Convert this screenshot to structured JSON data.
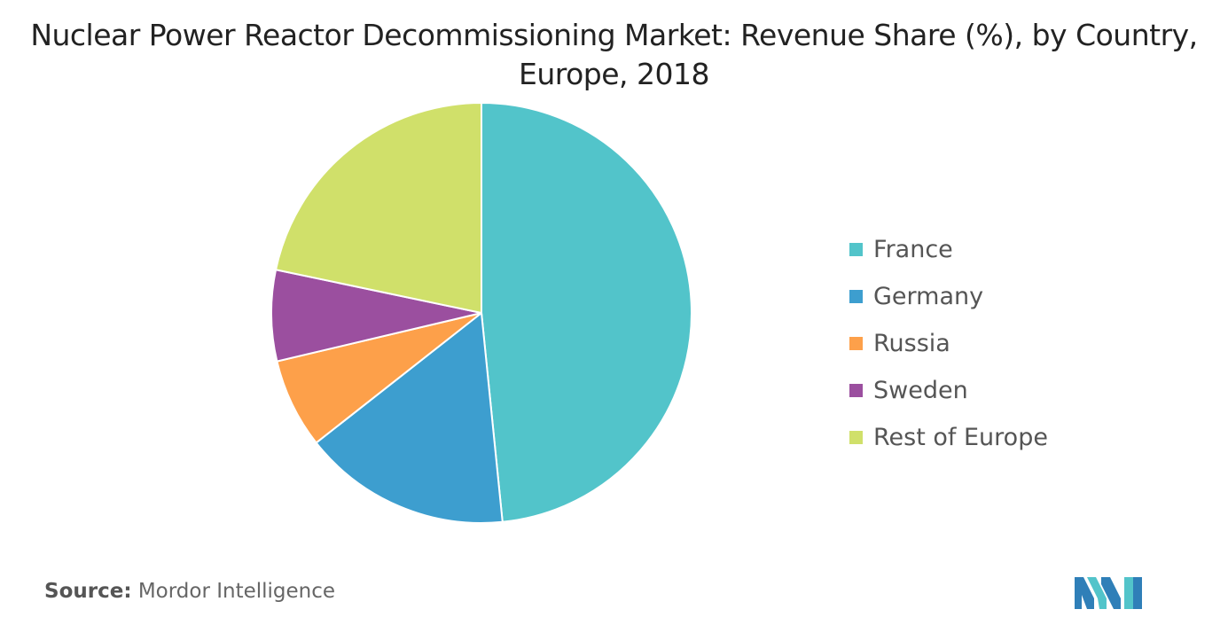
{
  "chart_data": {
    "type": "pie",
    "title": "Nuclear Power Reactor Decommissioning Market: Revenue Share (%), by Country, Europe, 2018",
    "categories": [
      "France",
      "Germany",
      "Russia",
      "Sweden",
      "Rest of Europe"
    ],
    "values": [
      48.4,
      16.0,
      6.9,
      7.0,
      21.7
    ],
    "colors": [
      "#52C4CA",
      "#3D9ECF",
      "#FDA04A",
      "#9B4F9F",
      "#D0E06A"
    ],
    "legend_position": "right",
    "start_angle": "top, clockwise"
  },
  "source": {
    "label": "Source:",
    "text": "Mordor Intelligence"
  }
}
